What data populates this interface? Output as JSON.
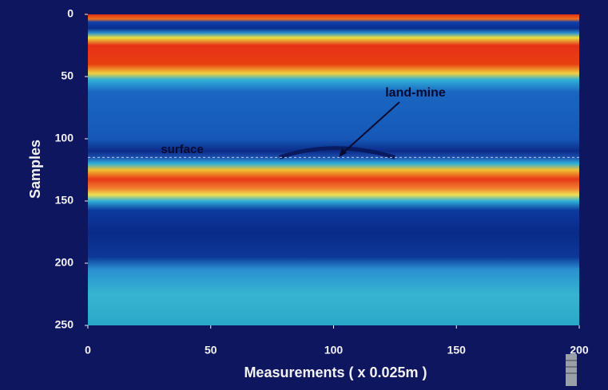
{
  "chart_data": {
    "type": "heatmap",
    "xlabel": "Measurements ( x 0.025m )",
    "ylabel": "Samples",
    "xlim": [
      0,
      200
    ],
    "xticks": [
      0,
      50,
      100,
      150,
      200
    ],
    "ylim": [
      0,
      250
    ],
    "yticks": [
      0,
      50,
      100,
      150,
      200,
      250
    ],
    "y_inverted": true,
    "annotations": [
      "land-mine",
      "surface"
    ]
  }
}
